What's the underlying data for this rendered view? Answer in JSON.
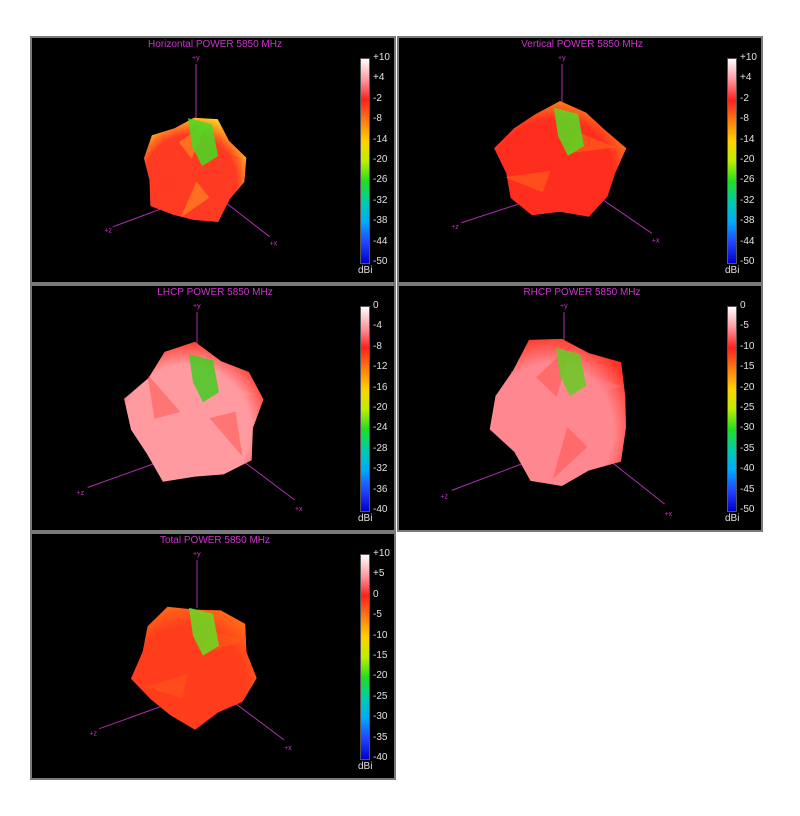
{
  "chart_data": [
    {
      "type": "heatmap",
      "title": "Horizontal POWER 5850  MHz",
      "colorbar_ticks": [
        "+10",
        "+4",
        "-2",
        "-8",
        "-14",
        "-20",
        "-26",
        "-32",
        "-38",
        "-44",
        "-50"
      ],
      "colorbar_unit": "dBi",
      "colorbar_range": [
        -50,
        10
      ],
      "axis_labels": {
        "y": "+y",
        "z": "+z",
        "x": "+x"
      },
      "colors": {
        "dominant": "#ff3a22",
        "highlight": "#44dd22",
        "edge": "#ffd020"
      }
    },
    {
      "type": "heatmap",
      "title": "Vertical POWER 5850  MHz",
      "colorbar_ticks": [
        "+10",
        "+4",
        "-2",
        "-8",
        "-14",
        "-20",
        "-26",
        "-32",
        "-38",
        "-44",
        "-50"
      ],
      "colorbar_unit": "dBi",
      "colorbar_range": [
        -50,
        10
      ],
      "axis_labels": {
        "y": "+y",
        "z": "+z",
        "x": "+x"
      },
      "colors": {
        "dominant": "#ff2d1e",
        "highlight": "#55dd22",
        "edge": "#ff8a1a"
      }
    },
    {
      "type": "heatmap",
      "title": "LHCP POWER 5850  MHz",
      "colorbar_ticks": [
        "0",
        "-4",
        "-8",
        "-12",
        "-16",
        "-20",
        "-24",
        "-28",
        "-32",
        "-36",
        "-40"
      ],
      "colorbar_unit": "dBi",
      "colorbar_range": [
        -40,
        0
      ],
      "axis_labels": {
        "y": "+y",
        "z": "+z",
        "x": "+x"
      },
      "colors": {
        "dominant": "#ff9aa0",
        "highlight": "#44cc22",
        "edge": "#ff3020"
      }
    },
    {
      "type": "heatmap",
      "title": "RHCP POWER 5850  MHz",
      "colorbar_ticks": [
        "0",
        "-5",
        "-10",
        "-15",
        "-20",
        "-25",
        "-30",
        "-35",
        "-40",
        "-45",
        "-50"
      ],
      "colorbar_unit": "dBi",
      "colorbar_range": [
        -50,
        0
      ],
      "axis_labels": {
        "y": "+y",
        "z": "+z",
        "x": "+x"
      },
      "colors": {
        "dominant": "#ff8890",
        "highlight": "#66cc22",
        "edge": "#ff3424"
      }
    },
    {
      "type": "heatmap",
      "title": "Total POWER 5850  MHz",
      "colorbar_ticks": [
        "+10",
        "+5",
        "0",
        "-5",
        "-10",
        "-15",
        "-20",
        "-25",
        "-30",
        "-35",
        "-40"
      ],
      "colorbar_unit": "dBi",
      "colorbar_range": [
        -40,
        10
      ],
      "axis_labels": {
        "y": "+y",
        "z": "+z",
        "x": "+x"
      },
      "colors": {
        "dominant": "#ff3c1c",
        "highlight": "#66dd22",
        "edge": "#ff6a18"
      }
    }
  ]
}
